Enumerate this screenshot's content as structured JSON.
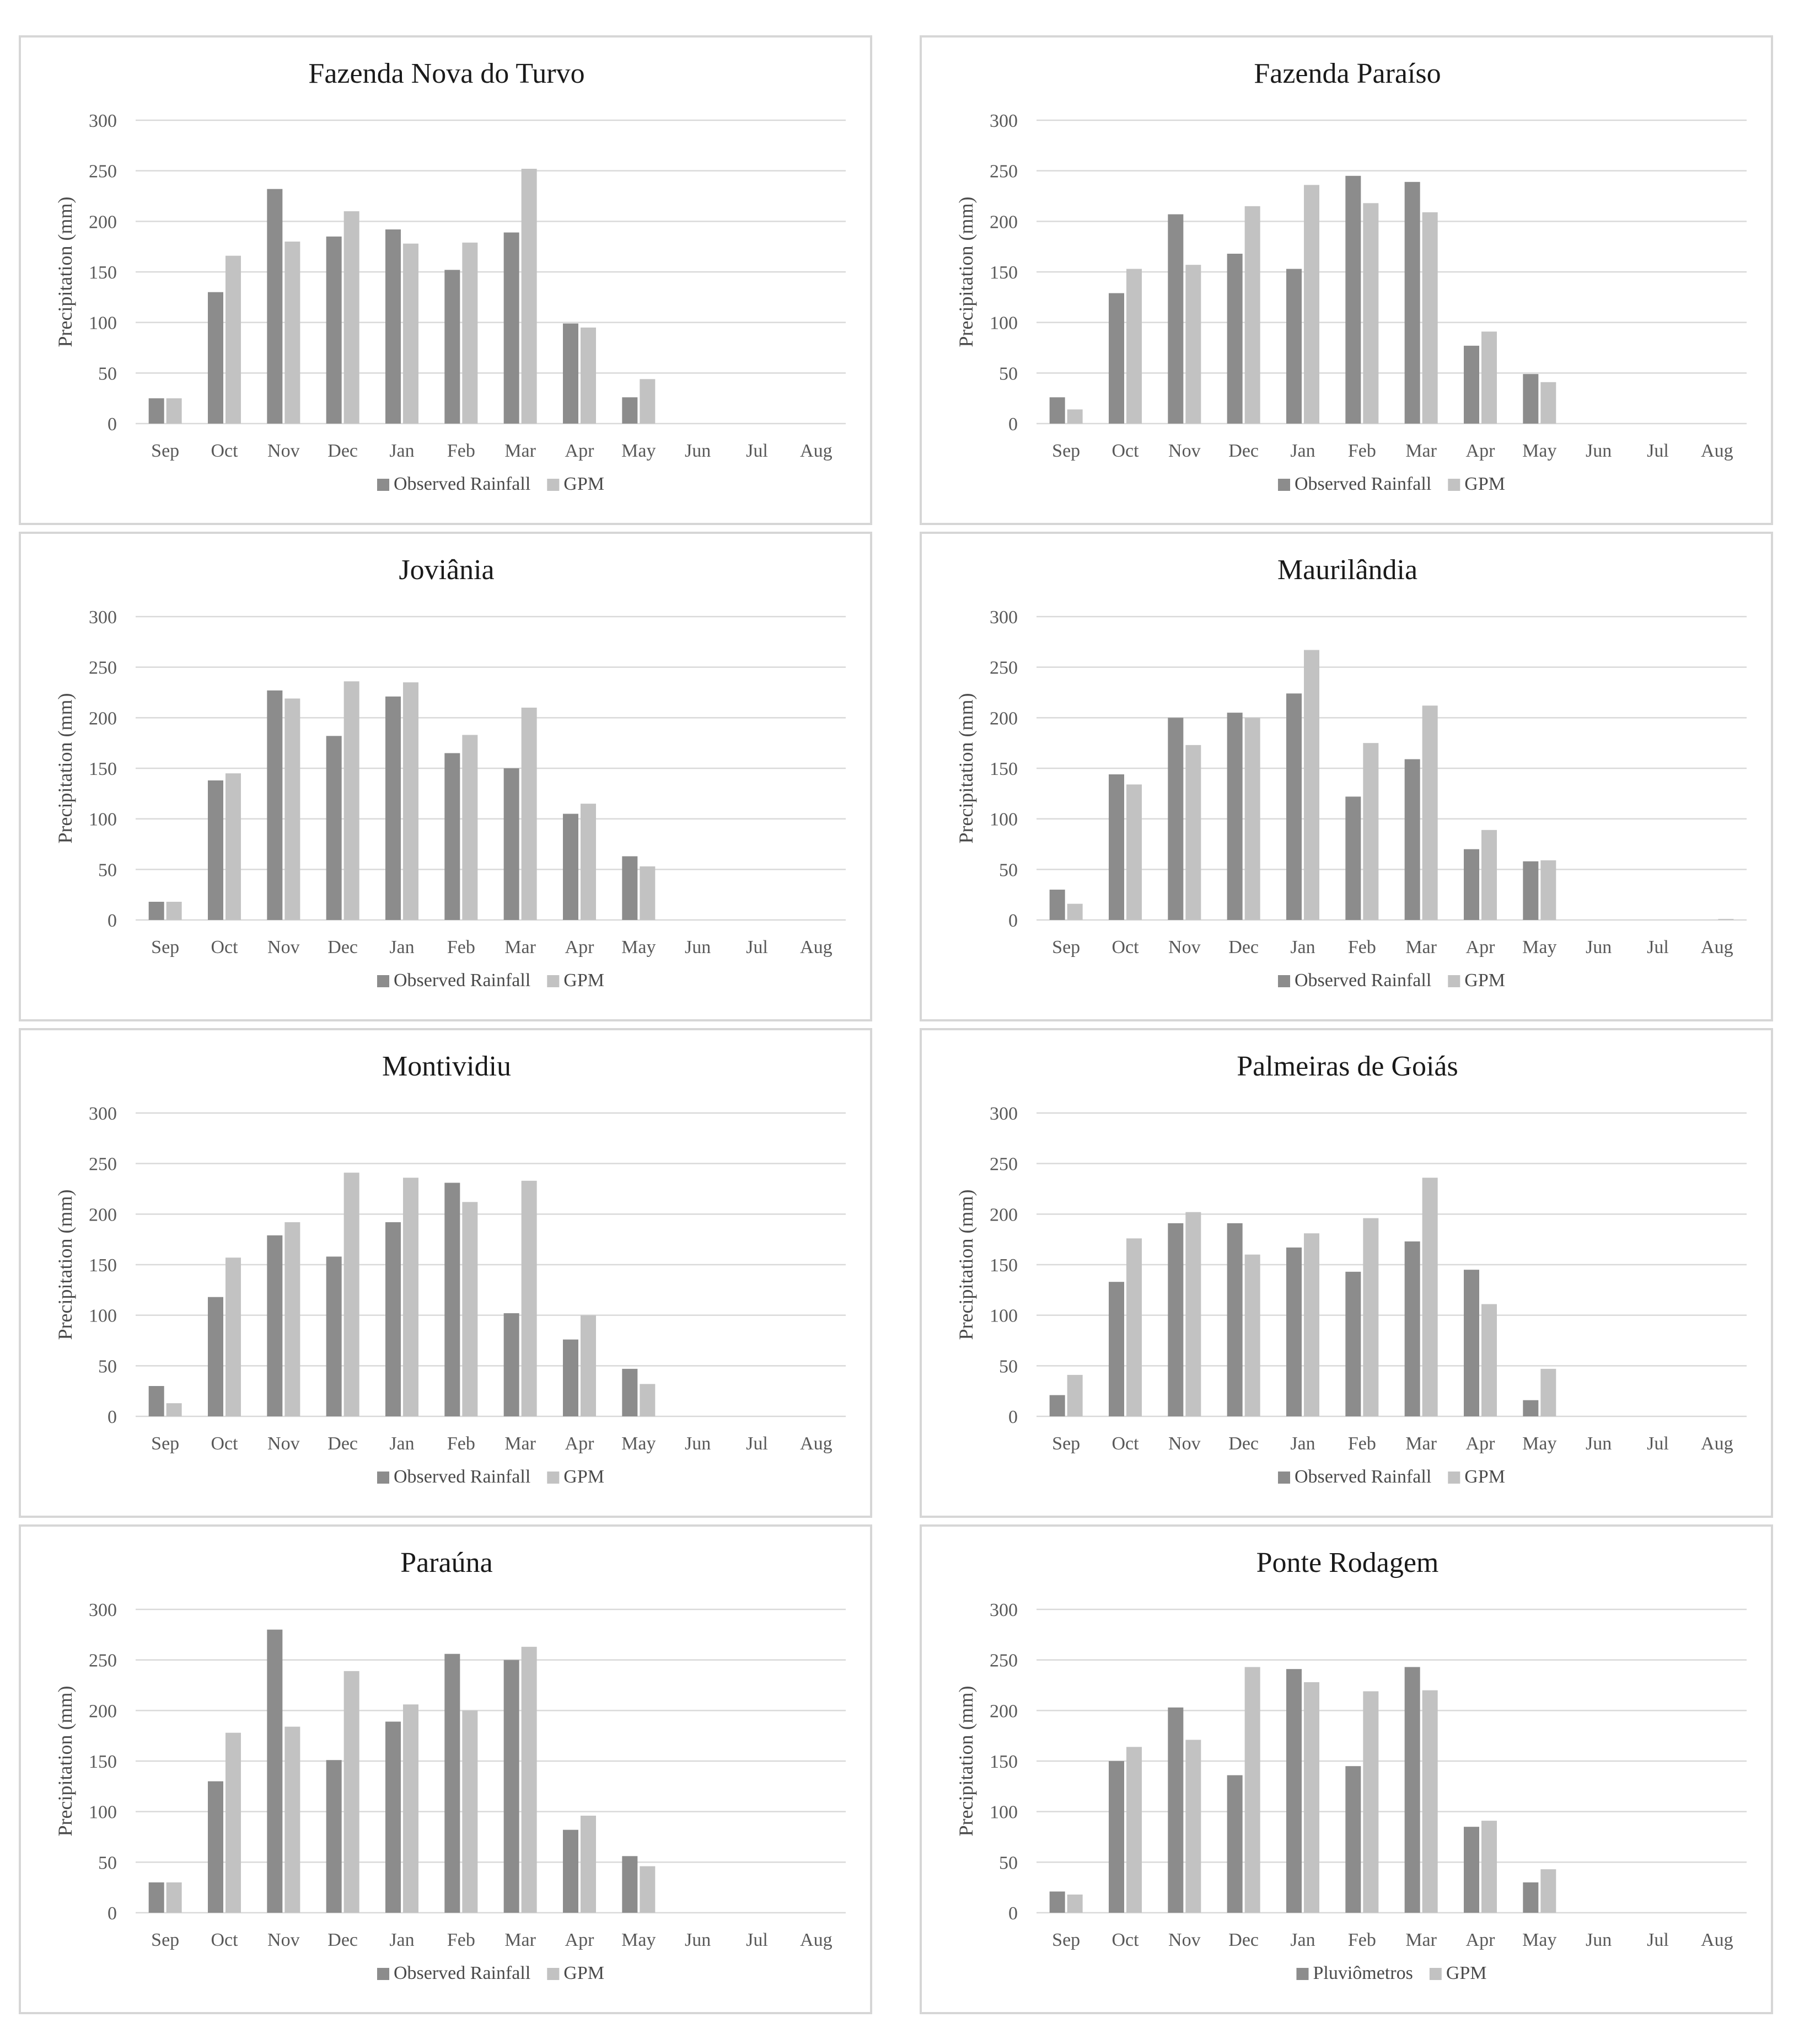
{
  "colors": {
    "observed": "#8c8c8c",
    "gpm": "#c2c2c2",
    "grid": "#d9d9d9",
    "border": "#d6d6d6"
  },
  "chart_data": [
    {
      "type": "bar",
      "title": "Fazenda Nova do Turvo",
      "ylabel": "Precipitation (mm)",
      "xlabel": "",
      "ylim": [
        0,
        300
      ],
      "yticks": [
        0,
        50,
        100,
        150,
        200,
        250,
        300
      ],
      "categories": [
        "Sep",
        "Oct",
        "Nov",
        "Dec",
        "Jan",
        "Feb",
        "Mar",
        "Apr",
        "May",
        "Jun",
        "Jul",
        "Aug"
      ],
      "legend_position": "bottom",
      "series": [
        {
          "name": "Observed Rainfall",
          "values": [
            25,
            130,
            232,
            185,
            192,
            152,
            189,
            99,
            26,
            0,
            0,
            0
          ]
        },
        {
          "name": "GPM",
          "values": [
            25,
            166,
            180,
            210,
            178,
            179,
            252,
            95,
            44,
            0,
            0,
            0
          ]
        }
      ]
    },
    {
      "type": "bar",
      "title": "Fazenda Paraíso",
      "ylabel": "Precipitation (mm)",
      "xlabel": "",
      "ylim": [
        0,
        300
      ],
      "yticks": [
        0,
        50,
        100,
        150,
        200,
        250,
        300
      ],
      "categories": [
        "Sep",
        "Oct",
        "Nov",
        "Dec",
        "Jan",
        "Feb",
        "Mar",
        "Apr",
        "May",
        "Jun",
        "Jul",
        "Aug"
      ],
      "legend_position": "bottom",
      "series": [
        {
          "name": "Observed Rainfall",
          "values": [
            26,
            129,
            207,
            168,
            153,
            245,
            239,
            77,
            49,
            0,
            0,
            0
          ]
        },
        {
          "name": "GPM",
          "values": [
            14,
            153,
            157,
            215,
            236,
            218,
            209,
            91,
            41,
            0,
            0,
            0
          ]
        }
      ]
    },
    {
      "type": "bar",
      "title": "Joviânia",
      "ylabel": "Precipitation (mm)",
      "xlabel": "",
      "ylim": [
        0,
        300
      ],
      "yticks": [
        0,
        50,
        100,
        150,
        200,
        250,
        300
      ],
      "categories": [
        "Sep",
        "Oct",
        "Nov",
        "Dec",
        "Jan",
        "Feb",
        "Mar",
        "Apr",
        "May",
        "Jun",
        "Jul",
        "Aug"
      ],
      "legend_position": "bottom",
      "series": [
        {
          "name": "Observed Rainfall",
          "values": [
            18,
            138,
            227,
            182,
            221,
            165,
            150,
            105,
            63,
            0,
            0,
            0
          ]
        },
        {
          "name": "GPM",
          "values": [
            18,
            145,
            219,
            236,
            235,
            183,
            210,
            115,
            53,
            0,
            0,
            0
          ]
        }
      ]
    },
    {
      "type": "bar",
      "title": "Maurilândia",
      "ylabel": "Precipitation (mm)",
      "xlabel": "",
      "ylim": [
        0,
        300
      ],
      "yticks": [
        0,
        50,
        100,
        150,
        200,
        250,
        300
      ],
      "categories": [
        "Sep",
        "Oct",
        "Nov",
        "Dec",
        "Jan",
        "Feb",
        "Mar",
        "Apr",
        "May",
        "Jun",
        "Jul",
        "Aug"
      ],
      "legend_position": "bottom",
      "series": [
        {
          "name": "Observed Rainfall",
          "values": [
            30,
            144,
            200,
            205,
            224,
            122,
            159,
            70,
            58,
            0,
            0,
            0
          ]
        },
        {
          "name": "GPM",
          "values": [
            16,
            134,
            173,
            200,
            267,
            175,
            212,
            89,
            59,
            0,
            0,
            1
          ]
        }
      ]
    },
    {
      "type": "bar",
      "title": "Montividiu",
      "ylabel": "Precipitation (mm)",
      "xlabel": "",
      "ylim": [
        0,
        300
      ],
      "yticks": [
        0,
        50,
        100,
        150,
        200,
        250,
        300
      ],
      "categories": [
        "Sep",
        "Oct",
        "Nov",
        "Dec",
        "Jan",
        "Feb",
        "Mar",
        "Apr",
        "May",
        "Jun",
        "Jul",
        "Aug"
      ],
      "legend_position": "bottom",
      "series": [
        {
          "name": "Observed Rainfall",
          "values": [
            30,
            118,
            179,
            158,
            192,
            231,
            102,
            76,
            47,
            0,
            0,
            0
          ]
        },
        {
          "name": "GPM",
          "values": [
            13,
            157,
            192,
            241,
            236,
            212,
            233,
            100,
            32,
            0,
            0,
            0
          ]
        }
      ]
    },
    {
      "type": "bar",
      "title": "Palmeiras de Goiás",
      "ylabel": "Precipitation (mm)",
      "xlabel": "",
      "ylim": [
        0,
        300
      ],
      "yticks": [
        0,
        50,
        100,
        150,
        200,
        250,
        300
      ],
      "categories": [
        "Sep",
        "Oct",
        "Nov",
        "Dec",
        "Jan",
        "Feb",
        "Mar",
        "Apr",
        "May",
        "Jun",
        "Jul",
        "Aug"
      ],
      "legend_position": "bottom",
      "series": [
        {
          "name": "Observed Rainfall",
          "values": [
            21,
            133,
            191,
            191,
            167,
            143,
            173,
            145,
            16,
            0,
            0,
            0
          ]
        },
        {
          "name": "GPM",
          "values": [
            41,
            176,
            202,
            160,
            181,
            196,
            236,
            111,
            47,
            0,
            0,
            0
          ]
        }
      ]
    },
    {
      "type": "bar",
      "title": "Paraúna",
      "ylabel": "Precipitation (mm)",
      "xlabel": "",
      "ylim": [
        0,
        300
      ],
      "yticks": [
        0,
        50,
        100,
        150,
        200,
        250,
        300
      ],
      "categories": [
        "Sep",
        "Oct",
        "Nov",
        "Dec",
        "Jan",
        "Feb",
        "Mar",
        "Apr",
        "May",
        "Jun",
        "Jul",
        "Aug"
      ],
      "legend_position": "bottom",
      "series": [
        {
          "name": "Observed Rainfall",
          "values": [
            30,
            130,
            280,
            151,
            189,
            256,
            250,
            82,
            56,
            0,
            0,
            0
          ]
        },
        {
          "name": "GPM",
          "values": [
            30,
            178,
            184,
            239,
            206,
            200,
            263,
            96,
            46,
            0,
            0,
            0
          ]
        }
      ]
    },
    {
      "type": "bar",
      "title": "Ponte Rodagem",
      "ylabel": "Precipitation (mm)",
      "xlabel": "",
      "ylim": [
        0,
        300
      ],
      "yticks": [
        0,
        50,
        100,
        150,
        200,
        250,
        300
      ],
      "categories": [
        "Sep",
        "Oct",
        "Nov",
        "Dec",
        "Jan",
        "Feb",
        "Mar",
        "Apr",
        "May",
        "Jun",
        "Jul",
        "Aug"
      ],
      "legend_position": "bottom",
      "series": [
        {
          "name": "Pluviômetros",
          "values": [
            21,
            150,
            203,
            136,
            241,
            145,
            243,
            85,
            30,
            0,
            0,
            0
          ]
        },
        {
          "name": "GPM",
          "values": [
            18,
            164,
            171,
            243,
            228,
            219,
            220,
            91,
            43,
            0,
            0,
            0
          ]
        }
      ]
    }
  ]
}
